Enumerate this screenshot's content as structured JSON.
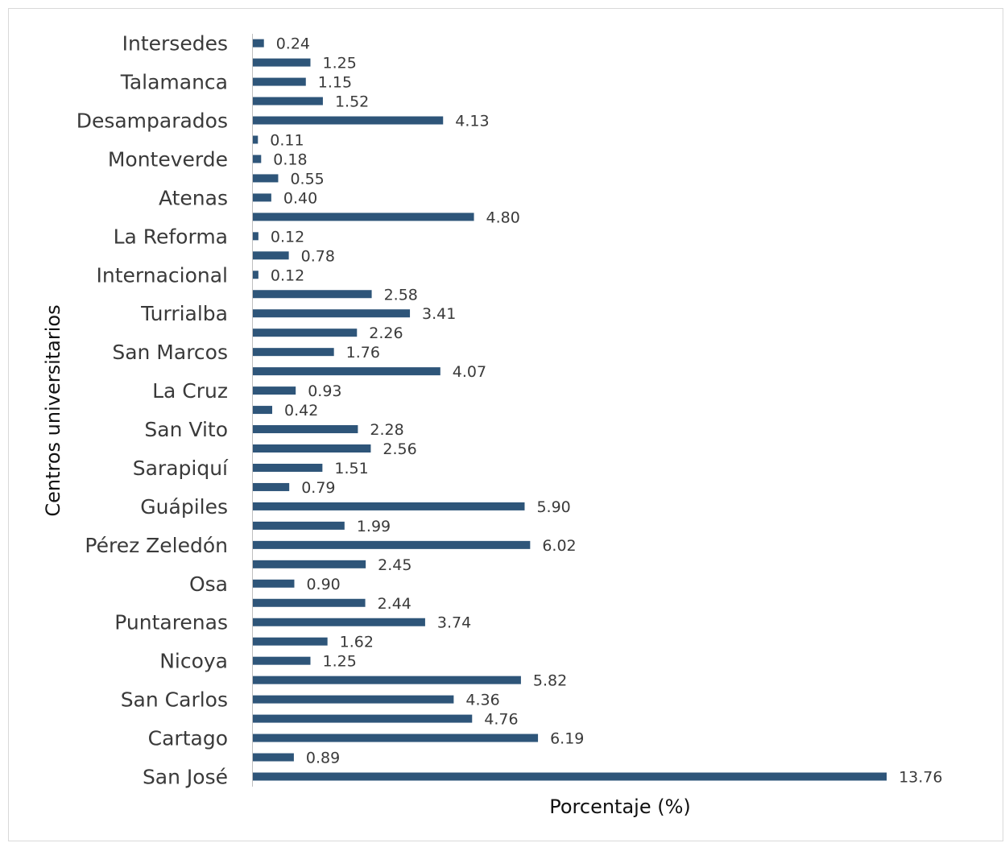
{
  "chart_data": {
    "type": "bar",
    "orientation": "horizontal",
    "xlabel": "Porcentaje (%)",
    "ylabel": "Centros universitarios",
    "bar_color": "#2e5579",
    "grid": false,
    "legend": "none",
    "xlim": [
      0,
      14
    ],
    "categories": [
      "San José",
      "",
      "Cartago",
      "",
      "San Carlos",
      "",
      "Nicoya",
      "",
      "Puntarenas",
      "",
      "Osa",
      "",
      "Pérez Zeledón",
      "",
      "Guápiles",
      "",
      "Sarapiquí",
      "",
      "San Vito",
      "",
      "La Cruz",
      "",
      "San Marcos",
      "",
      "Turrialba",
      "",
      "Internacional",
      "",
      "La Reforma",
      "",
      "Atenas",
      "",
      "Monteverde",
      "",
      "Desamparados",
      "",
      "Talamanca",
      "",
      "Intersedes"
    ],
    "values": [
      13.76,
      0.89,
      6.19,
      4.76,
      4.36,
      5.82,
      1.25,
      1.62,
      3.74,
      2.44,
      0.9,
      2.45,
      6.02,
      1.99,
      5.9,
      0.79,
      1.51,
      2.56,
      2.28,
      0.42,
      0.93,
      4.07,
      1.76,
      2.26,
      3.41,
      2.58,
      0.12,
      0.78,
      0.12,
      4.8,
      0.4,
      0.55,
      0.18,
      0.11,
      4.13,
      1.52,
      1.15,
      1.25,
      0.24
    ],
    "value_labels": [
      "13.76",
      "0.89",
      "6.19",
      "4.76",
      "4.36",
      "5.82",
      "1.25",
      "1.62",
      "3.74",
      "2.44",
      "0.90",
      "2.45",
      "6.02",
      "1.99",
      "5.90",
      "0.79",
      "1.51",
      "2.56",
      "2.28",
      "0.42",
      "0.93",
      "4.07",
      "1.76",
      "2.26",
      "3.41",
      "2.58",
      "0.12",
      "0.78",
      "0.12",
      "4.80",
      "0.40",
      "0.55",
      "0.18",
      "0.11",
      "4.13",
      "1.52",
      "1.15",
      "1.25",
      "0.24"
    ]
  }
}
